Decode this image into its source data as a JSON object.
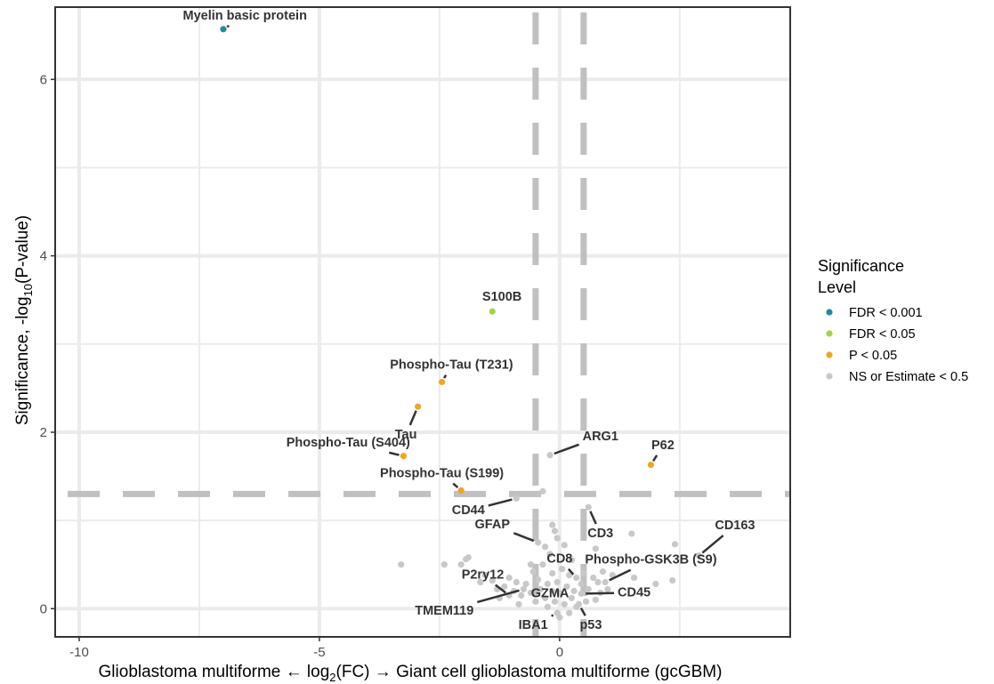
{
  "chart_data": {
    "type": "scatter",
    "title": "",
    "xlabel": {
      "left": "Glioblastoma multiforme ← log",
      "sub": "2",
      "right": "(FC) → Giant cell glioblastoma multiforme (gcGBM)"
    },
    "ylabel": {
      "main": "Significance, -log",
      "sub": "10",
      "tail": "(P-value)"
    },
    "xlim": [
      -10.5,
      4.8
    ],
    "ylim": [
      -0.32,
      6.82
    ],
    "x_ticks": [
      {
        "value": -10,
        "label": "-10"
      },
      {
        "value": -5,
        "label": "-5"
      },
      {
        "value": 0,
        "label": "0"
      }
    ],
    "y_ticks": [
      {
        "value": 0,
        "label": "0"
      },
      {
        "value": 2,
        "label": "2"
      },
      {
        "value": 4,
        "label": "4"
      },
      {
        "value": 6,
        "label": "6"
      }
    ],
    "grid": true,
    "threshold_lines": {
      "x": [
        -0.5,
        0.5
      ],
      "y": 1.3
    },
    "legend": {
      "title_lines": [
        "Significance",
        "Level"
      ],
      "position": "right",
      "entries": [
        {
          "key": "fdr001",
          "label": "FDR < 0.001",
          "color": "#1f8aa3"
        },
        {
          "key": "fdr05",
          "label": "FDR < 0.05",
          "color": "#9fd44a"
        },
        {
          "key": "p05",
          "label": "P < 0.05",
          "color": "#f2a521"
        },
        {
          "key": "ns",
          "label": "NS or Estimate < 0.5",
          "color": "#c8c8c8"
        }
      ]
    },
    "labeled_points": [
      {
        "name": "Myelin basic protein",
        "x": -7.0,
        "y": 6.57,
        "group": "fdr001",
        "lx": -6.55,
        "ly": 6.72
      },
      {
        "name": "S100B",
        "x": -1.4,
        "y": 3.37,
        "group": "fdr05",
        "lx": -1.2,
        "ly": 3.53
      },
      {
        "name": "Phospho-Tau (T231)",
        "x": -2.45,
        "y": 2.57,
        "group": "p05",
        "lx": -2.25,
        "ly": 2.76
      },
      {
        "name": "Tau",
        "x": -2.95,
        "y": 2.29,
        "group": "p05",
        "lx": -3.2,
        "ly": 1.97
      },
      {
        "name": "Phospho-Tau (S404)",
        "x": -3.25,
        "y": 1.73,
        "group": "p05",
        "lx": -4.4,
        "ly": 1.88
      },
      {
        "name": "Phospho-Tau (S199)",
        "x": -2.05,
        "y": 1.34,
        "group": "p05",
        "lx": -2.45,
        "ly": 1.53
      },
      {
        "name": "P62",
        "x": 1.9,
        "y": 1.63,
        "group": "p05",
        "lx": 2.15,
        "ly": 1.85
      },
      {
        "name": "ARG1",
        "x": -0.2,
        "y": 1.74,
        "group": "ns",
        "lx": 0.85,
        "ly": 1.95
      },
      {
        "name": "CD44",
        "x": -0.9,
        "y": 1.25,
        "group": "ns",
        "lx": -1.9,
        "ly": 1.11
      },
      {
        "name": "CD3",
        "x": 0.6,
        "y": 1.15,
        "group": "ns",
        "lx": 0.85,
        "ly": 0.85
      },
      {
        "name": "CD163",
        "x": 2.9,
        "y": 0.6,
        "group": "ns",
        "lx": 3.65,
        "ly": 0.94
      },
      {
        "name": "GFAP",
        "x": -0.45,
        "y": 0.75,
        "group": "ns",
        "lx": -1.4,
        "ly": 0.95
      },
      {
        "name": "Phospho-GSK3B (S9)",
        "x": 0.95,
        "y": 0.3,
        "group": "ns",
        "lx": 1.9,
        "ly": 0.55
      },
      {
        "name": "CD8",
        "x": 0.35,
        "y": 0.35,
        "group": "ns",
        "lx": 0.0,
        "ly": 0.56
      },
      {
        "name": "CD45",
        "x": 0.45,
        "y": 0.17,
        "group": "ns",
        "lx": 1.55,
        "ly": 0.18
      },
      {
        "name": "P2ry12",
        "x": -1.05,
        "y": 0.15,
        "group": "ns",
        "lx": -1.6,
        "ly": 0.38
      },
      {
        "name": "GZMA",
        "x": -0.15,
        "y": 0.2,
        "group": "ns",
        "lx": -0.2,
        "ly": 0.17
      },
      {
        "name": "TMEM119",
        "x": -0.75,
        "y": 0.22,
        "group": "ns",
        "lx": -2.4,
        "ly": -0.03
      },
      {
        "name": "IBA1",
        "x": -0.05,
        "y": -0.05,
        "group": "ns",
        "lx": -0.55,
        "ly": -0.19
      },
      {
        "name": "p53",
        "x": 0.4,
        "y": 0.05,
        "group": "ns",
        "lx": 0.65,
        "ly": -0.19
      }
    ],
    "other_points": [
      [
        -0.35,
        1.33
      ],
      [
        -3.3,
        0.5
      ],
      [
        -2.4,
        0.5
      ],
      [
        -2.05,
        0.5
      ],
      [
        -1.95,
        0.56
      ],
      [
        -1.9,
        0.58
      ],
      [
        -1.65,
        0.3
      ],
      [
        -1.55,
        0.38
      ],
      [
        -1.3,
        0.22
      ],
      [
        -1.25,
        0.12
      ],
      [
        -1.15,
        0.25
      ],
      [
        -1.05,
        0.35
      ],
      [
        -0.95,
        0.2
      ],
      [
        -0.9,
        0.3
      ],
      [
        -0.8,
        0.15
      ],
      [
        -0.7,
        0.28
      ],
      [
        -0.6,
        0.18
      ],
      [
        -0.55,
        0.42
      ],
      [
        -0.5,
        0.08
      ],
      [
        -0.45,
        0.33
      ],
      [
        -0.4,
        0.22
      ],
      [
        -0.35,
        0.5
      ],
      [
        -0.3,
        0.12
      ],
      [
        -0.25,
        0.28
      ],
      [
        -0.2,
        0.62
      ],
      [
        -0.15,
        0.4
      ],
      [
        -0.1,
        0.08
      ],
      [
        -0.05,
        0.3
      ],
      [
        0.0,
        0.18
      ],
      [
        0.05,
        0.45
      ],
      [
        0.1,
        0.05
      ],
      [
        0.15,
        0.25
      ],
      [
        0.2,
        0.38
      ],
      [
        0.25,
        0.12
      ],
      [
        0.3,
        0.2
      ],
      [
        0.35,
        0.02
      ],
      [
        0.45,
        0.28
      ],
      [
        0.5,
        0.4
      ],
      [
        0.55,
        0.08
      ],
      [
        0.6,
        0.22
      ],
      [
        0.7,
        0.35
      ],
      [
        0.75,
        0.1
      ],
      [
        0.8,
        0.3
      ],
      [
        0.85,
        0.18
      ],
      [
        0.9,
        0.42
      ],
      [
        1.0,
        0.22
      ],
      [
        1.1,
        0.38
      ],
      [
        1.5,
        0.85
      ],
      [
        1.55,
        0.35
      ],
      [
        2.0,
        0.28
      ],
      [
        2.4,
        0.73
      ],
      [
        2.35,
        0.32
      ],
      [
        -0.15,
        0.95
      ],
      [
        -0.1,
        0.88
      ],
      [
        -0.05,
        0.8
      ],
      [
        -0.3,
        0.7
      ],
      [
        0.1,
        0.72
      ],
      [
        0.75,
        0.68
      ],
      [
        -1.4,
        0.32
      ],
      [
        -0.85,
        0.05
      ],
      [
        0.0,
        -0.1
      ],
      [
        0.2,
        -0.05
      ],
      [
        -0.25,
        0.02
      ],
      [
        -0.6,
        0.5
      ],
      [
        0.25,
        0.55
      ]
    ]
  }
}
